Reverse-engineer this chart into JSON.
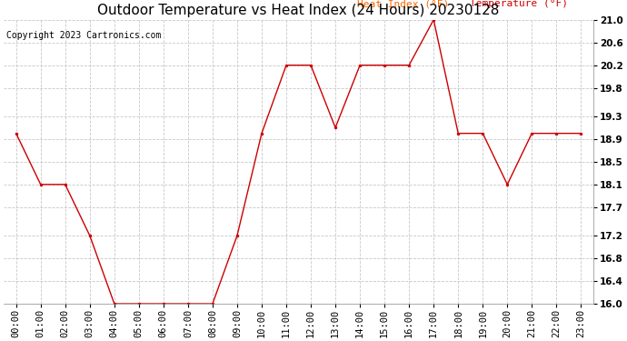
{
  "title": "Outdoor Temperature vs Heat Index (24 Hours) 20230128",
  "copyright": "Copyright 2023 Cartronics.com",
  "legend_heat": "Heat Index (°F)",
  "legend_temp": "Temperature (°F)",
  "hours": [
    "00:00",
    "01:00",
    "02:00",
    "03:00",
    "04:00",
    "05:00",
    "06:00",
    "07:00",
    "08:00",
    "09:00",
    "10:00",
    "11:00",
    "12:00",
    "13:00",
    "14:00",
    "15:00",
    "16:00",
    "17:00",
    "18:00",
    "19:00",
    "20:00",
    "21:00",
    "22:00",
    "23:00"
  ],
  "temperature": [
    19.0,
    18.1,
    18.1,
    17.2,
    16.0,
    16.0,
    16.0,
    16.0,
    16.0,
    17.2,
    19.0,
    20.2,
    20.2,
    19.1,
    20.2,
    20.2,
    20.2,
    21.0,
    19.0,
    19.0,
    18.1,
    19.0,
    19.0,
    19.0
  ],
  "heat_index": [
    19.0,
    18.1,
    18.1,
    17.2,
    16.0,
    16.0,
    16.0,
    16.0,
    16.0,
    17.2,
    19.0,
    20.2,
    20.2,
    19.1,
    20.2,
    20.2,
    20.2,
    21.0,
    19.0,
    19.0,
    18.1,
    19.0,
    19.0,
    19.0
  ],
  "line_color": "#cc0000",
  "background_color": "#ffffff",
  "grid_color": "#c8c8c8",
  "title_color": "#000000",
  "copyright_color": "#000000",
  "legend_heat_color": "#ff6600",
  "legend_temp_color": "#cc0000",
  "ylim": [
    16.0,
    21.0
  ],
  "yticks": [
    16.0,
    16.4,
    16.8,
    17.2,
    17.7,
    18.1,
    18.5,
    18.9,
    19.3,
    19.8,
    20.2,
    20.6,
    21.0
  ],
  "title_fontsize": 11,
  "copyright_fontsize": 7,
  "legend_fontsize": 8,
  "axis_fontsize": 7.5
}
